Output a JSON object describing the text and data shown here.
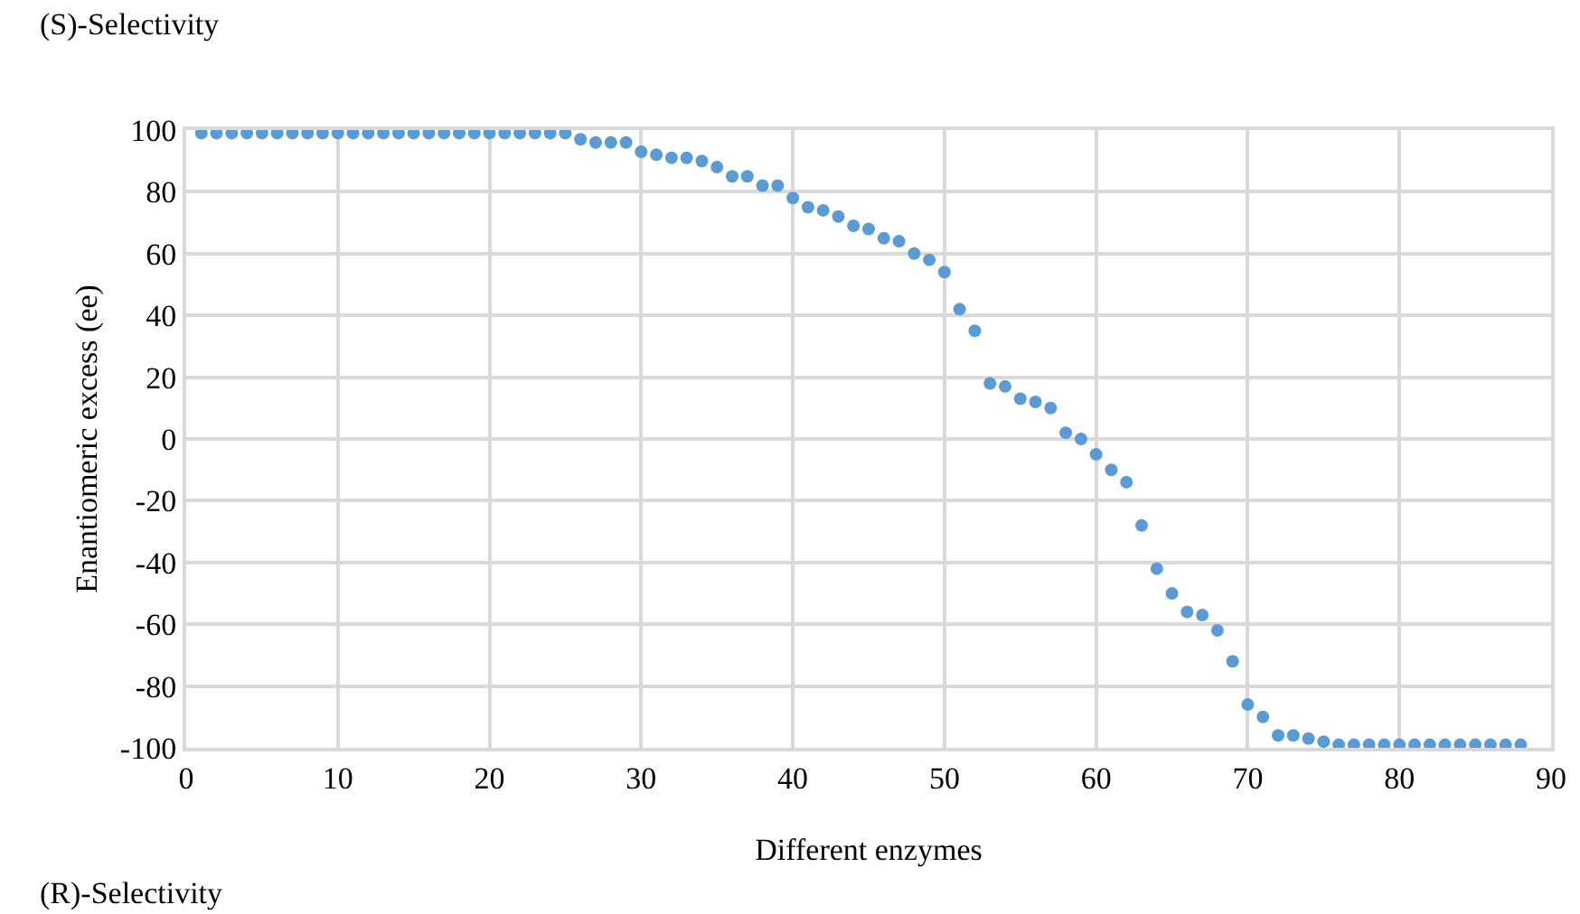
{
  "chart_data": {
    "type": "scatter",
    "xlabel": "Different enzymes",
    "ylabel": "Enantiomeric excess (ee)",
    "annotations": [
      "(S)-Selectivity",
      "(R)-Selectivity"
    ],
    "x": [
      1,
      2,
      3,
      4,
      5,
      6,
      7,
      8,
      9,
      10,
      11,
      12,
      13,
      14,
      15,
      16,
      17,
      18,
      19,
      20,
      21,
      22,
      23,
      24,
      25,
      26,
      27,
      28,
      29,
      30,
      31,
      32,
      33,
      34,
      35,
      36,
      37,
      38,
      39,
      40,
      41,
      42,
      43,
      44,
      45,
      46,
      47,
      48,
      49,
      50,
      51,
      52,
      53,
      54,
      55,
      56,
      57,
      58,
      59,
      60,
      61,
      62,
      63,
      64,
      65,
      66,
      67,
      68,
      69,
      70,
      71,
      72,
      73,
      74,
      75,
      76,
      77,
      78,
      79,
      80,
      81,
      82,
      83,
      84,
      85,
      86,
      87,
      88
    ],
    "series": [
      {
        "color": "#5b9bd5",
        "values": [
          99,
          99,
          99,
          99,
          99,
          99,
          99,
          99,
          99,
          99,
          99,
          99,
          99,
          99,
          99,
          99,
          99,
          99,
          99,
          99,
          99,
          99,
          99,
          99,
          99,
          97,
          96,
          96,
          96,
          93,
          92,
          91,
          91,
          90,
          88,
          85,
          85,
          82,
          82,
          78,
          75,
          74,
          72,
          69,
          68,
          65,
          64,
          60,
          58,
          54,
          42,
          35,
          18,
          17,
          13,
          12,
          10,
          2,
          0,
          -5,
          -10,
          -14,
          -28,
          -42,
          -50,
          -56,
          -57,
          -62,
          -72,
          -86,
          -90,
          -96,
          -96,
          -97,
          -98,
          -99,
          -99,
          -99,
          -99,
          -99,
          -99,
          -99,
          -99,
          -99,
          -99,
          -99,
          -99,
          -99
        ]
      }
    ],
    "xlim": [
      0,
      90
    ],
    "xticks": [
      0,
      10,
      20,
      30,
      40,
      50,
      60,
      70,
      80,
      90
    ],
    "ylim": [
      -100,
      100
    ],
    "yticks": [
      -100,
      -80,
      -60,
      -40,
      -20,
      0,
      20,
      40,
      60,
      80,
      100
    ],
    "grid": true,
    "marker": "circle"
  }
}
